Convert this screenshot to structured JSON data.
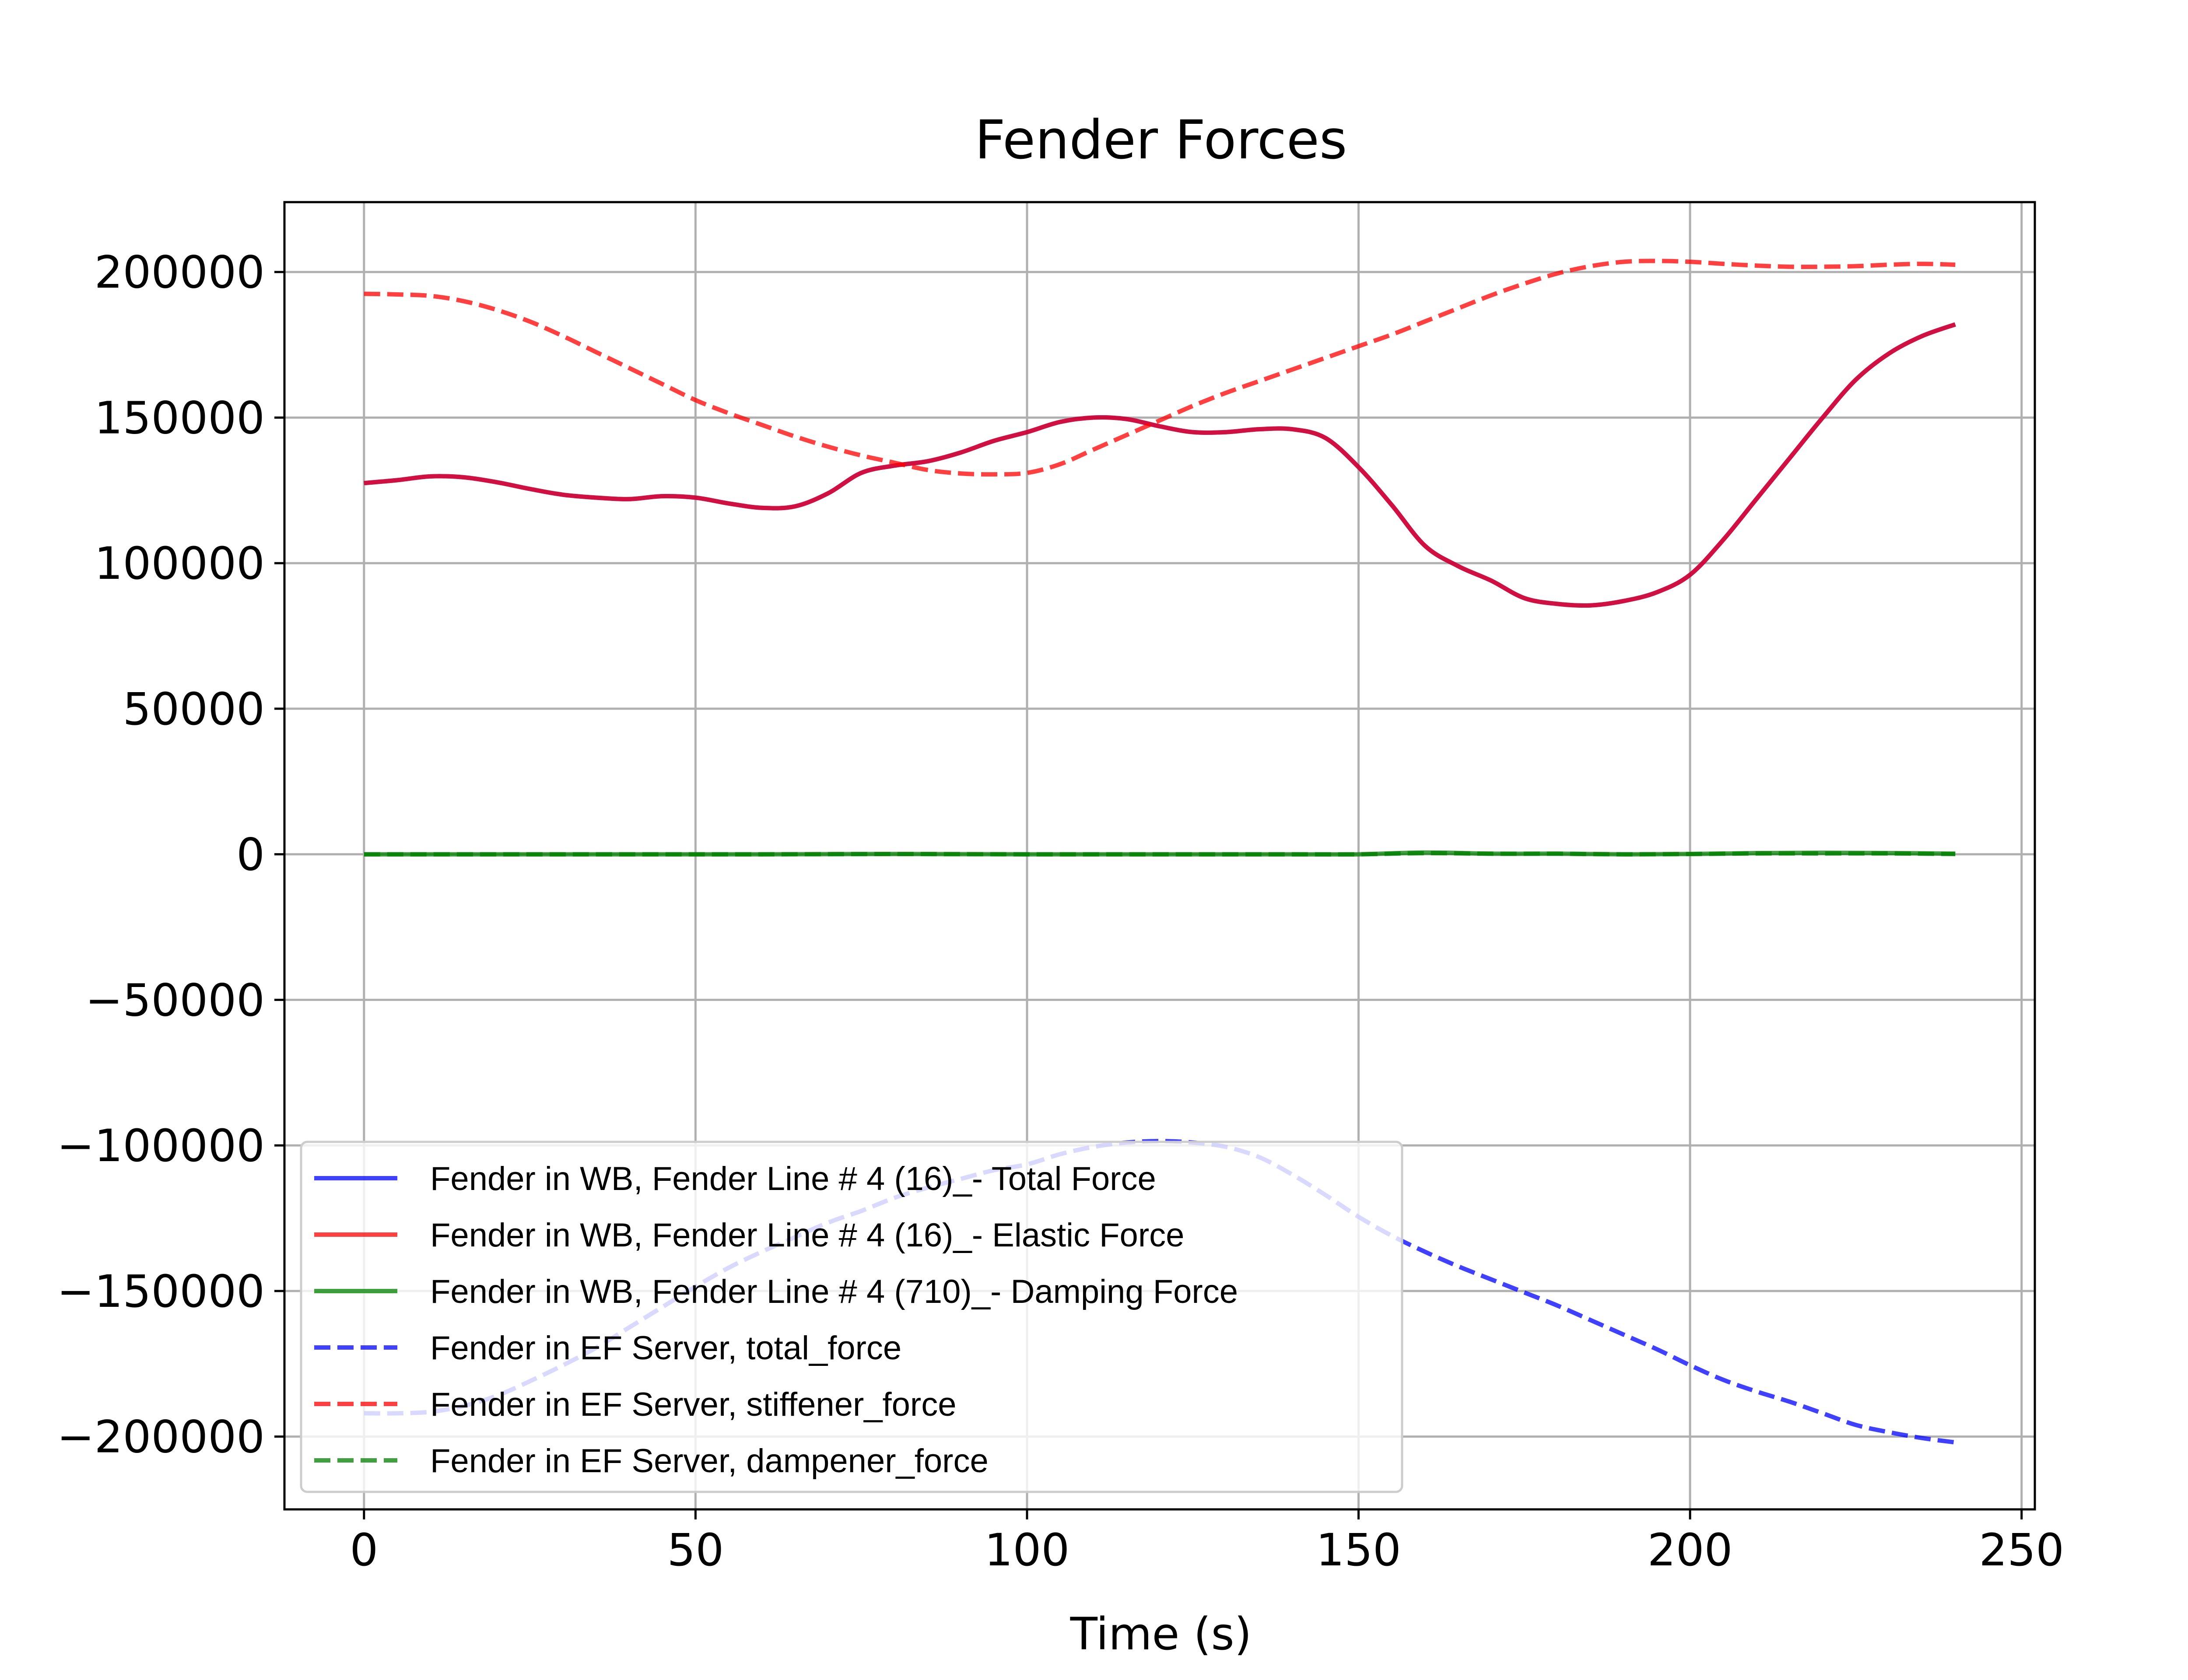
{
  "chart_data": {
    "type": "line",
    "title": "Fender Forces",
    "xlabel": "Time (s)",
    "ylabel": "",
    "xlim": [
      -12,
      252
    ],
    "ylim": [
      -225000,
      224000
    ],
    "x_ticks": [
      0,
      50,
      100,
      150,
      200,
      250
    ],
    "x_tick_labels": [
      "0",
      "50",
      "100",
      "150",
      "200",
      "250"
    ],
    "y_ticks": [
      200000,
      150000,
      100000,
      50000,
      0,
      -50000,
      -100000,
      -150000,
      -200000
    ],
    "y_tick_labels": [
      "200000",
      "150000",
      "100000",
      "50000",
      "0",
      "−50000",
      "−100000",
      "−150000",
      "−200000"
    ],
    "grid": true,
    "legend_position": "lower-left",
    "series": [
      {
        "name": "Fender in WB, Fender Line # 4 (16)_- Total Force",
        "color": "#0000ff",
        "dash": "solid",
        "opacity": 0.75,
        "x": [
          0,
          5,
          10,
          15,
          20,
          25,
          30,
          35,
          40,
          45,
          50,
          55,
          60,
          65,
          70,
          75,
          80,
          85,
          90,
          95,
          100,
          105,
          110,
          115,
          120,
          125,
          130,
          135,
          140,
          145,
          150,
          155,
          160,
          165,
          170,
          175,
          180,
          185,
          190,
          195,
          200,
          205,
          210,
          215,
          220,
          225,
          230,
          235,
          240
        ],
        "y": [
          127500,
          128500,
          129800,
          129500,
          127800,
          125500,
          123500,
          122500,
          122000,
          123000,
          122500,
          120500,
          119000,
          119500,
          124000,
          131000,
          133500,
          135000,
          138000,
          142000,
          145000,
          148500,
          150000,
          149500,
          147000,
          145000,
          145000,
          146000,
          146000,
          143000,
          133000,
          120000,
          106000,
          99000,
          94000,
          88000,
          86000,
          85500,
          87000,
          90000,
          96000,
          108000,
          122000,
          136000,
          150000,
          163000,
          172000,
          178000,
          182000
        ]
      },
      {
        "name": "Fender in WB, Fender Line # 4 (16)_- Elastic Force",
        "color": "#ff0000",
        "dash": "solid",
        "opacity": 0.75,
        "x": [
          0,
          5,
          10,
          15,
          20,
          25,
          30,
          35,
          40,
          45,
          50,
          55,
          60,
          65,
          70,
          75,
          80,
          85,
          90,
          95,
          100,
          105,
          110,
          115,
          120,
          125,
          130,
          135,
          140,
          145,
          150,
          155,
          160,
          165,
          170,
          175,
          180,
          185,
          190,
          195,
          200,
          205,
          210,
          215,
          220,
          225,
          230,
          235,
          240
        ],
        "y": [
          127500,
          128500,
          129800,
          129500,
          127800,
          125500,
          123500,
          122500,
          122000,
          123000,
          122500,
          120500,
          119000,
          119500,
          124000,
          131000,
          133500,
          135000,
          138000,
          142000,
          145000,
          148500,
          150000,
          149500,
          147000,
          145000,
          145000,
          146000,
          146000,
          143000,
          133000,
          120000,
          106000,
          99000,
          94000,
          88000,
          86000,
          85500,
          87000,
          90000,
          96000,
          108000,
          122000,
          136000,
          150000,
          163000,
          172000,
          178000,
          182000
        ]
      },
      {
        "name": "Fender in WB, Fender Line # 4 (710)_- Damping Force",
        "color": "#008000",
        "dash": "solid",
        "opacity": 0.75,
        "x": [
          0,
          20,
          40,
          60,
          80,
          100,
          120,
          140,
          150,
          160,
          170,
          180,
          190,
          200,
          210,
          220,
          230,
          240
        ],
        "y": [
          0,
          0,
          0,
          0,
          100,
          0,
          0,
          0,
          0,
          600,
          200,
          200,
          0,
          100,
          400,
          500,
          400,
          200
        ]
      },
      {
        "name": "Fender in EF Server, total_force",
        "color": "#0000ff",
        "dash": "dashed",
        "opacity": 0.75,
        "x": [
          0,
          5,
          10,
          15,
          20,
          25,
          30,
          35,
          40,
          45,
          50,
          55,
          60,
          65,
          70,
          75,
          80,
          85,
          90,
          95,
          100,
          105,
          110,
          115,
          120,
          125,
          130,
          135,
          140,
          145,
          150,
          155,
          160,
          165,
          170,
          175,
          180,
          185,
          190,
          195,
          200,
          205,
          210,
          215,
          220,
          225,
          230,
          235,
          240
        ],
        "y": [
          -192000,
          -192000,
          -191500,
          -189500,
          -186000,
          -181000,
          -175500,
          -169500,
          -162500,
          -155500,
          -148500,
          -142000,
          -136500,
          -131500,
          -126500,
          -122500,
          -118000,
          -114500,
          -111500,
          -108500,
          -106500,
          -103000,
          -100500,
          -99000,
          -98500,
          -99000,
          -100500,
          -104000,
          -110000,
          -117000,
          -124500,
          -131000,
          -136500,
          -141500,
          -146000,
          -150500,
          -155000,
          -160000,
          -165000,
          -170000,
          -175500,
          -180500,
          -184500,
          -188000,
          -192000,
          -196000,
          -198500,
          -200500,
          -202000
        ]
      },
      {
        "name": "Fender in EF Server, stiffener_force",
        "color": "#ff0000",
        "dash": "dashed",
        "opacity": 0.75,
        "x": [
          0,
          5,
          10,
          15,
          20,
          25,
          30,
          35,
          40,
          45,
          50,
          55,
          60,
          65,
          70,
          75,
          80,
          85,
          90,
          95,
          100,
          105,
          110,
          115,
          120,
          125,
          130,
          135,
          140,
          145,
          150,
          155,
          160,
          165,
          170,
          175,
          180,
          185,
          190,
          195,
          200,
          205,
          210,
          215,
          220,
          225,
          230,
          235,
          240
        ],
        "y": [
          192500,
          192300,
          191800,
          190000,
          187000,
          183000,
          178000,
          172500,
          167000,
          161500,
          156000,
          151500,
          147500,
          143500,
          140000,
          137000,
          134500,
          132000,
          130800,
          130500,
          131000,
          134000,
          139000,
          144000,
          149000,
          154000,
          158500,
          162500,
          166500,
          170500,
          174500,
          178500,
          183000,
          187500,
          192000,
          196000,
          199500,
          202000,
          203500,
          203800,
          203500,
          202800,
          202200,
          201800,
          201800,
          202000,
          202500,
          202800,
          202500
        ]
      },
      {
        "name": "Fender in EF Server, dampener_force",
        "color": "#008000",
        "dash": "dashed",
        "opacity": 0.75,
        "x": [
          0,
          20,
          40,
          60,
          80,
          100,
          120,
          140,
          150,
          160,
          170,
          180,
          190,
          200,
          210,
          220,
          230,
          240
        ],
        "y": [
          0,
          0,
          0,
          0,
          100,
          0,
          0,
          0,
          0,
          400,
          200,
          200,
          0,
          100,
          300,
          300,
          300,
          100
        ]
      }
    ]
  }
}
